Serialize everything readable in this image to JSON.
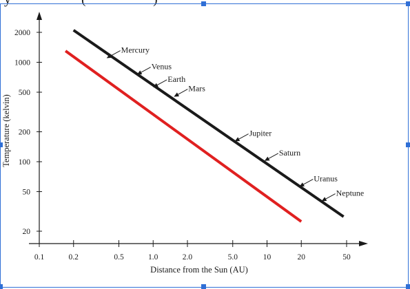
{
  "chart_data": {
    "type": "line",
    "title": "",
    "xlabel": "Distance from the Sun (AU)",
    "ylabel": "Temperature (kelvin)",
    "x_scale": "log",
    "y_scale": "log",
    "xlim": [
      0.1,
      50
    ],
    "ylim": [
      20,
      2000
    ],
    "grid": false,
    "x_ticks": [
      0.1,
      0.2,
      0.5,
      1.0,
      2.0,
      5.0,
      10,
      20,
      50
    ],
    "x_tick_labels": [
      "0.1",
      "0.2",
      "0.5",
      "1.0",
      "2.0",
      "5.0",
      "10",
      "20",
      "50"
    ],
    "y_ticks": [
      2000,
      1000,
      500,
      200,
      100,
      50,
      20
    ],
    "y_tick_labels": [
      "2000",
      "1000",
      "500",
      "200",
      "100",
      "50",
      "20"
    ],
    "series": [
      {
        "color": "#1a1a1a",
        "x": [
          0.2,
          47
        ],
        "y": [
          2100,
          28
        ]
      },
      {
        "color": "#e02020",
        "x": [
          0.17,
          20
        ],
        "y": [
          1300,
          25
        ]
      }
    ],
    "annotations": [
      {
        "label": "Mercury",
        "x": 0.39,
        "y": 1100
      },
      {
        "label": "Venus",
        "x": 0.72,
        "y": 750
      },
      {
        "label": "Earth",
        "x": 1.0,
        "y": 560
      },
      {
        "label": "Mars",
        "x": 1.52,
        "y": 450
      },
      {
        "label": "Jupiter",
        "x": 5.2,
        "y": 160
      },
      {
        "label": "Saturn",
        "x": 9.5,
        "y": 102
      },
      {
        "label": "Uranus",
        "x": 19.2,
        "y": 56
      },
      {
        "label": "Neptune",
        "x": 30.1,
        "y": 40
      }
    ]
  }
}
